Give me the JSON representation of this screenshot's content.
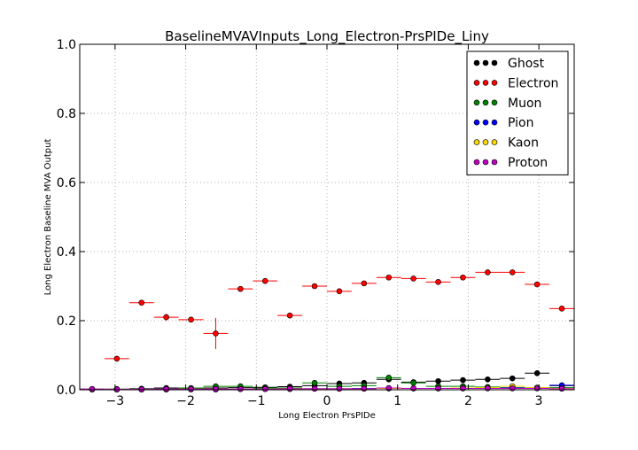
{
  "chart_data": {
    "type": "scatter",
    "title": "BaselineMVAVInputs_Long_Electron-PrsPIDe_Liny",
    "xlabel": "Long Electron PrsPIDe",
    "ylabel": "Long Electron Baseline MVA Output",
    "xlim": [
      -3.5,
      3.5
    ],
    "ylim": [
      0.0,
      1.0
    ],
    "x_ticks": [
      "−3",
      "−2",
      "−1",
      "0",
      "1",
      "2",
      "3"
    ],
    "x_tick_values": [
      -3,
      -2,
      -1,
      0,
      1,
      2,
      3
    ],
    "y_ticks": [
      "0.0",
      "0.2",
      "0.4",
      "0.6",
      "0.8",
      "1.0"
    ],
    "y_tick_values": [
      0.0,
      0.2,
      0.4,
      0.6,
      0.8,
      1.0
    ],
    "grid": true,
    "legend_position": "top-right",
    "bin_half_width": 0.175,
    "x": [
      -3.325,
      -2.975,
      -2.625,
      -2.275,
      -1.925,
      -1.575,
      -1.225,
      -0.875,
      -0.525,
      -0.175,
      0.175,
      0.525,
      0.875,
      1.225,
      1.575,
      1.925,
      2.275,
      2.625,
      2.975,
      3.325
    ],
    "series": [
      {
        "name": "Ghost",
        "color": "#000000",
        "values": [
          0.002,
          0.002,
          0.003,
          0.005,
          0.004,
          0.005,
          0.006,
          0.007,
          0.009,
          0.012,
          0.018,
          0.02,
          0.03,
          0.022,
          0.025,
          0.028,
          0.03,
          0.033,
          0.048,
          0.012
        ],
        "errors": [
          0.001,
          0.001,
          0.001,
          0.002,
          0.002,
          0.002,
          0.002,
          0.002,
          0.002,
          0.002,
          0.002,
          0.002,
          0.003,
          0.002,
          0.002,
          0.002,
          0.002,
          0.002,
          0.003,
          0.002
        ]
      },
      {
        "name": "Electron",
        "color": "#ff0000",
        "values": [
          null,
          0.09,
          0.252,
          0.21,
          0.203,
          0.163,
          0.292,
          0.315,
          0.215,
          0.3,
          0.285,
          0.308,
          0.325,
          0.322,
          0.312,
          0.325,
          0.34,
          0.34,
          0.305,
          0.235
        ],
        "errors": [
          0,
          0.007,
          0.005,
          0.01,
          0.008,
          0.045,
          0.005,
          0.008,
          0.005,
          0.005,
          0.005,
          0.004,
          0.004,
          0.004,
          0.004,
          0.004,
          0.004,
          0.004,
          0.004,
          0.003
        ]
      },
      {
        "name": "Muon",
        "color": "#008000",
        "values": [
          null,
          null,
          null,
          0.002,
          0.005,
          0.01,
          0.01,
          0.005,
          0.005,
          0.02,
          0.01,
          0.012,
          0.035,
          0.02,
          0.01,
          0.01,
          0.008,
          0.006,
          0.006,
          0.006
        ],
        "errors": [
          0,
          0,
          0,
          0.001,
          0.002,
          0.002,
          0.002,
          0.002,
          0.002,
          0.003,
          0.002,
          0.003,
          0.005,
          0.003,
          0.002,
          0.002,
          0.002,
          0.002,
          0.002,
          0.002
        ]
      },
      {
        "name": "Pion",
        "color": "#0000ff",
        "values": [
          0.001,
          0.001,
          0.001,
          0.001,
          0.001,
          0.001,
          0.002,
          0.002,
          0.002,
          0.003,
          0.003,
          0.004,
          0.004,
          0.004,
          0.004,
          0.004,
          0.005,
          0.005,
          0.006,
          0.013
        ],
        "errors": [
          0,
          0,
          0,
          0,
          0,
          0,
          0,
          0,
          0,
          0,
          0,
          0,
          0,
          0,
          0,
          0,
          0,
          0,
          0,
          0.001
        ]
      },
      {
        "name": "Kaon",
        "color": "#ffd700",
        "values": [
          0.001,
          0.001,
          0.001,
          0.001,
          0.002,
          0.002,
          0.002,
          0.002,
          0.003,
          0.003,
          0.003,
          0.003,
          0.004,
          0.004,
          0.004,
          0.005,
          0.006,
          0.01,
          0.006,
          0.004
        ],
        "errors": [
          0,
          0,
          0,
          0,
          0,
          0,
          0,
          0,
          0,
          0,
          0,
          0,
          0,
          0,
          0,
          0,
          0,
          0.001,
          0.001,
          0.001
        ]
      },
      {
        "name": "Proton",
        "color": "#bf00bf",
        "values": [
          0.002,
          0.001,
          0.001,
          0.002,
          0.002,
          0.002,
          0.002,
          0.002,
          0.003,
          0.003,
          0.003,
          0.003,
          0.005,
          0.004,
          0.004,
          0.004,
          0.004,
          0.004,
          0.004,
          0.003
        ],
        "errors": [
          0,
          0,
          0,
          0,
          0,
          0,
          0,
          0,
          0,
          0,
          0,
          0,
          0,
          0,
          0,
          0,
          0,
          0,
          0,
          0
        ]
      }
    ]
  }
}
